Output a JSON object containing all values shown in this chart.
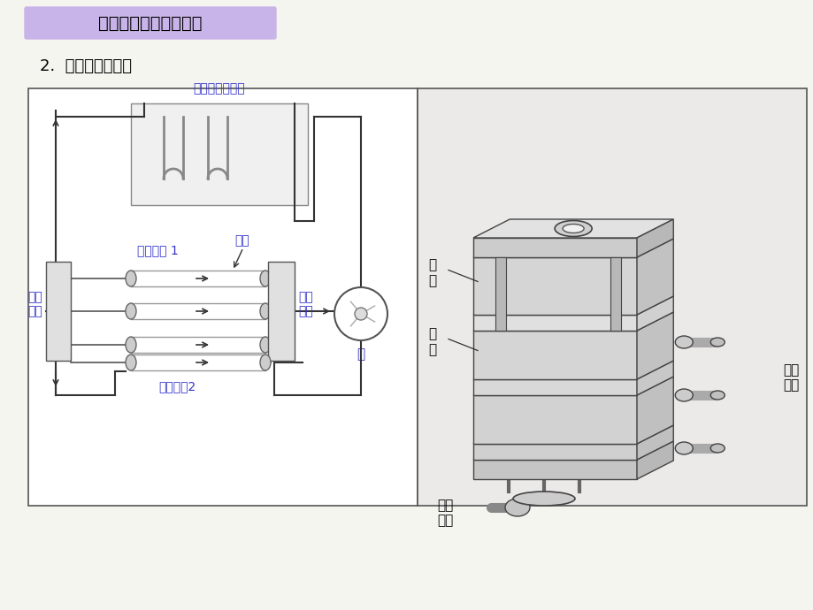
{
  "bg_color": "#f5f5f0",
  "title_text": "一、冷却水路设计原则",
  "title_bg": "#c8b4e8",
  "subtitle_text": "2.  模具冷却系统：",
  "left_label_color": "#3333cc",
  "schematic_labels": {
    "temp_controller": "模具温度调节器",
    "cooling_circuit1": "冷却回路 1",
    "soft_tube": "软管",
    "supply_manifold": "供给\n歧管",
    "pump": "泵",
    "collect_manifold_left": "收集\n歧管",
    "cooling_circuit2": "冷却水路2"
  },
  "iso_labels": {
    "static_mold": "静\n模",
    "dynamic_mold": "动\n模",
    "collect_manifold": "收集\n歧管",
    "supply_manifold": "供给\n歧管"
  }
}
